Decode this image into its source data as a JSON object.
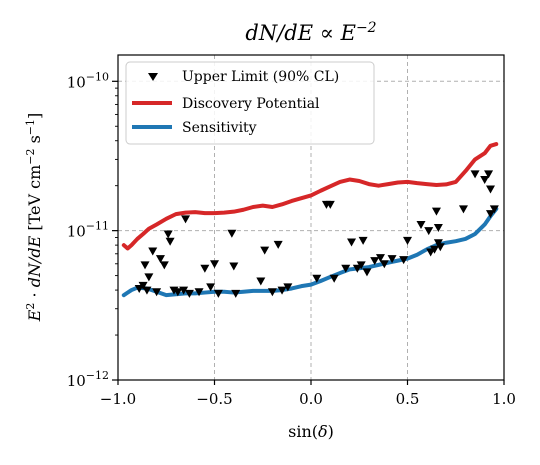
{
  "chart_data": {
    "type": "scatter",
    "title": "dN/dE ∝ E^{-2}",
    "xlabel": "sin(δ)",
    "ylabel": "E²·dN/dE  [TeV cm⁻² s⁻¹]",
    "xlim": [
      -1.0,
      1.0
    ],
    "ylim": [
      1e-12,
      1.5e-10
    ],
    "yscale": "log",
    "x_ticks": [
      -1.0,
      -0.5,
      0.0,
      0.5,
      1.0
    ],
    "x_tick_labels": [
      "−1.0",
      "−0.5",
      "0.0",
      "0.5",
      "1.0"
    ],
    "y_ticks": [
      1e-12,
      1e-11,
      1e-10
    ],
    "y_tick_labels": [
      {
        "base": "10",
        "exp": "−12"
      },
      {
        "base": "10",
        "exp": "−11"
      },
      {
        "base": "10",
        "exp": "−10"
      }
    ],
    "grid": true,
    "legend_position": "top-left",
    "series": [
      {
        "name": "Upper Limit  (90% CL)",
        "kind": "marker",
        "color": "#000000",
        "points": [
          [
            -0.89,
            4.1e-12
          ],
          [
            -0.87,
            4.3e-12
          ],
          [
            -0.85,
            4e-12
          ],
          [
            -0.86,
            5.9e-12
          ],
          [
            -0.84,
            4.9e-12
          ],
          [
            -0.82,
            7.3e-12
          ],
          [
            -0.8,
            3.9e-12
          ],
          [
            -0.78,
            6.5e-12
          ],
          [
            -0.76,
            5.9e-12
          ],
          [
            -0.74,
            9.5e-12
          ],
          [
            -0.73,
            8.5e-12
          ],
          [
            -0.71,
            4e-12
          ],
          [
            -0.69,
            3.9e-12
          ],
          [
            -0.66,
            4e-12
          ],
          [
            -0.65,
            1.2e-11
          ],
          [
            -0.63,
            3.8e-12
          ],
          [
            -0.58,
            3.9e-12
          ],
          [
            -0.55,
            5.6e-12
          ],
          [
            -0.52,
            4.2e-12
          ],
          [
            -0.5,
            6e-12
          ],
          [
            -0.48,
            3.8e-12
          ],
          [
            -0.41,
            9.6e-12
          ],
          [
            -0.4,
            5.8e-12
          ],
          [
            -0.39,
            3.8e-12
          ],
          [
            -0.26,
            4.6e-12
          ],
          [
            -0.24,
            7.4e-12
          ],
          [
            -0.2,
            3.9e-12
          ],
          [
            -0.17,
            8.1e-12
          ],
          [
            -0.15,
            4e-12
          ],
          [
            -0.12,
            4.2e-12
          ],
          [
            0.03,
            4.8e-12
          ],
          [
            0.08,
            1.5e-11
          ],
          [
            0.1,
            1.5e-11
          ],
          [
            0.12,
            4.8e-12
          ],
          [
            0.18,
            5.6e-12
          ],
          [
            0.21,
            8.4e-12
          ],
          [
            0.24,
            5.6e-12
          ],
          [
            0.26,
            5.9e-12
          ],
          [
            0.27,
            8.6e-12
          ],
          [
            0.29,
            5.3e-12
          ],
          [
            0.33,
            6.3e-12
          ],
          [
            0.36,
            6.6e-12
          ],
          [
            0.38,
            6e-12
          ],
          [
            0.42,
            6.5e-12
          ],
          [
            0.48,
            6.4e-12
          ],
          [
            0.5,
            8.6e-12
          ],
          [
            0.57,
            1.1e-11
          ],
          [
            0.61,
            1e-11
          ],
          [
            0.62,
            7.2e-12
          ],
          [
            0.64,
            7.5e-12
          ],
          [
            0.65,
            1.35e-11
          ],
          [
            0.66,
            8.3e-12
          ],
          [
            0.66,
            1.05e-11
          ],
          [
            0.67,
            7.8e-12
          ],
          [
            0.79,
            1.4e-11
          ],
          [
            0.85,
            2.4e-11
          ],
          [
            0.9,
            2.2e-11
          ],
          [
            0.92,
            2.4e-11
          ],
          [
            0.93,
            1.9e-11
          ],
          [
            0.93,
            1.3e-11
          ],
          [
            0.95,
            1.4e-11
          ]
        ]
      },
      {
        "name": "Discovery Potential",
        "kind": "line",
        "color": "#d62728",
        "points": [
          [
            -0.97,
            8e-12
          ],
          [
            -0.95,
            7.6e-12
          ],
          [
            -0.93,
            8e-12
          ],
          [
            -0.9,
            8.8e-12
          ],
          [
            -0.87,
            9.5e-12
          ],
          [
            -0.84,
            1.03e-11
          ],
          [
            -0.8,
            1.1e-11
          ],
          [
            -0.75,
            1.2e-11
          ],
          [
            -0.7,
            1.29e-11
          ],
          [
            -0.65,
            1.32e-11
          ],
          [
            -0.6,
            1.33e-11
          ],
          [
            -0.55,
            1.31e-11
          ],
          [
            -0.5,
            1.31e-11
          ],
          [
            -0.45,
            1.32e-11
          ],
          [
            -0.4,
            1.34e-11
          ],
          [
            -0.35,
            1.38e-11
          ],
          [
            -0.3,
            1.44e-11
          ],
          [
            -0.25,
            1.47e-11
          ],
          [
            -0.2,
            1.44e-11
          ],
          [
            -0.15,
            1.5e-11
          ],
          [
            -0.1,
            1.58e-11
          ],
          [
            -0.05,
            1.65e-11
          ],
          [
            0.0,
            1.72e-11
          ],
          [
            0.05,
            1.85e-11
          ],
          [
            0.1,
            1.98e-11
          ],
          [
            0.15,
            2.12e-11
          ],
          [
            0.2,
            2.2e-11
          ],
          [
            0.25,
            2.15e-11
          ],
          [
            0.3,
            2.05e-11
          ],
          [
            0.35,
            2e-11
          ],
          [
            0.4,
            2.05e-11
          ],
          [
            0.45,
            2.1e-11
          ],
          [
            0.5,
            2.12e-11
          ],
          [
            0.55,
            2.08e-11
          ],
          [
            0.6,
            2.05e-11
          ],
          [
            0.65,
            2.02e-11
          ],
          [
            0.7,
            2.04e-11
          ],
          [
            0.75,
            2.12e-11
          ],
          [
            0.8,
            2.5e-11
          ],
          [
            0.85,
            3e-11
          ],
          [
            0.9,
            3.3e-11
          ],
          [
            0.93,
            3.7e-11
          ],
          [
            0.96,
            3.8e-11
          ]
        ]
      },
      {
        "name": "Sensitivity",
        "kind": "line",
        "color": "#1f77b4",
        "points": [
          [
            -0.97,
            3.7e-12
          ],
          [
            -0.93,
            4e-12
          ],
          [
            -0.9,
            4.15e-12
          ],
          [
            -0.85,
            4.1e-12
          ],
          [
            -0.8,
            3.9e-12
          ],
          [
            -0.75,
            3.7e-12
          ],
          [
            -0.7,
            3.75e-12
          ],
          [
            -0.65,
            3.8e-12
          ],
          [
            -0.6,
            3.8e-12
          ],
          [
            -0.55,
            3.85e-12
          ],
          [
            -0.5,
            3.9e-12
          ],
          [
            -0.45,
            3.9e-12
          ],
          [
            -0.4,
            3.85e-12
          ],
          [
            -0.35,
            3.9e-12
          ],
          [
            -0.3,
            3.95e-12
          ],
          [
            -0.25,
            3.95e-12
          ],
          [
            -0.2,
            3.95e-12
          ],
          [
            -0.15,
            4e-12
          ],
          [
            -0.1,
            4.1e-12
          ],
          [
            -0.05,
            4.25e-12
          ],
          [
            0.0,
            4.35e-12
          ],
          [
            0.05,
            4.6e-12
          ],
          [
            0.1,
            4.9e-12
          ],
          [
            0.15,
            5.2e-12
          ],
          [
            0.2,
            5.5e-12
          ],
          [
            0.25,
            5.6e-12
          ],
          [
            0.3,
            5.7e-12
          ],
          [
            0.35,
            5.9e-12
          ],
          [
            0.4,
            6.1e-12
          ],
          [
            0.45,
            6.3e-12
          ],
          [
            0.5,
            6.5e-12
          ],
          [
            0.55,
            6.9e-12
          ],
          [
            0.6,
            7.5e-12
          ],
          [
            0.65,
            8e-12
          ],
          [
            0.7,
            8.3e-12
          ],
          [
            0.75,
            8.5e-12
          ],
          [
            0.8,
            8.8e-12
          ],
          [
            0.85,
            9.5e-12
          ],
          [
            0.9,
            1.1e-11
          ],
          [
            0.93,
            1.25e-11
          ],
          [
            0.96,
            1.4e-11
          ]
        ]
      }
    ]
  }
}
